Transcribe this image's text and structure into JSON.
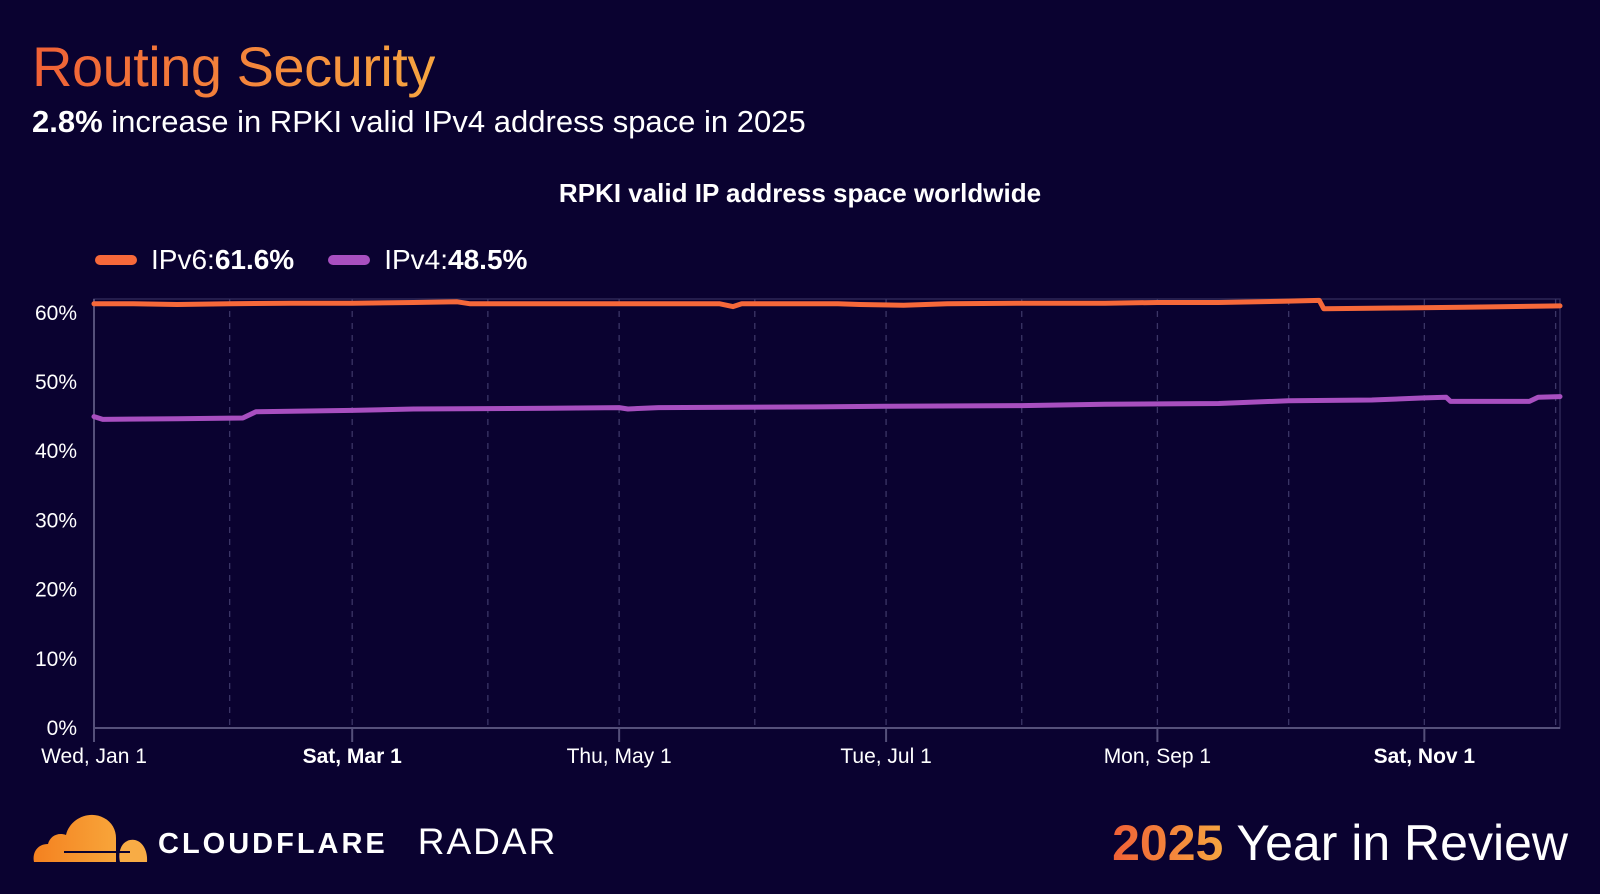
{
  "header": {
    "title": "Routing Security",
    "subtitle_bold": "2.8%",
    "subtitle_rest": " increase in RPKI valid IPv4 address space in 2025"
  },
  "footer": {
    "brand": "CLOUDFLARE",
    "product": "RADAR",
    "year": "2025",
    "tagline": " Year in Review"
  },
  "legend": [
    {
      "label": "IPv6: ",
      "value": "61.6%",
      "color": "#f6683a"
    },
    {
      "label": "IPv4: ",
      "value": "48.5%",
      "color": "#a84fc0"
    }
  ],
  "chart_data": {
    "type": "line",
    "title": "RPKI valid IP address space worldwide",
    "xlim": [
      "2025-01-01",
      "2025-12-02"
    ],
    "ylim": [
      0,
      62
    ],
    "grid": true,
    "legend_placement": "top-left",
    "y_ticks": [
      {
        "value": 0,
        "label": "0%"
      },
      {
        "value": 10,
        "label": "10%"
      },
      {
        "value": 20,
        "label": "20%"
      },
      {
        "value": 30,
        "label": "30%"
      },
      {
        "value": 40,
        "label": "40%"
      },
      {
        "value": 50,
        "label": "50%"
      },
      {
        "value": 60,
        "label": "60%"
      }
    ],
    "x_ticks": [
      {
        "date": "2025-01-01",
        "label": "Wed, Jan 1",
        "bold": false
      },
      {
        "date": "2025-03-01",
        "label": "Sat, Mar 1",
        "bold": true
      },
      {
        "date": "2025-05-01",
        "label": "Thu, May 1",
        "bold": false
      },
      {
        "date": "2025-07-01",
        "label": "Tue, Jul 1",
        "bold": false
      },
      {
        "date": "2025-09-01",
        "label": "Mon, Sep 1",
        "bold": false
      },
      {
        "date": "2025-11-01",
        "label": "Sat, Nov 1",
        "bold": true
      }
    ],
    "gridlines": [
      "2025-02-01",
      "2025-03-01",
      "2025-04-01",
      "2025-05-01",
      "2025-06-01",
      "2025-07-01",
      "2025-08-01",
      "2025-09-01",
      "2025-10-01",
      "2025-11-01",
      "2025-12-01"
    ],
    "series": [
      {
        "name": "IPv6",
        "color": "#f6683a",
        "points": [
          [
            "2025-01-01",
            61.3
          ],
          [
            "2025-01-10",
            61.3
          ],
          [
            "2025-01-20",
            61.2
          ],
          [
            "2025-02-01",
            61.3
          ],
          [
            "2025-02-15",
            61.4
          ],
          [
            "2025-03-01",
            61.4
          ],
          [
            "2025-03-15",
            61.5
          ],
          [
            "2025-03-25",
            61.6
          ],
          [
            "2025-03-28",
            61.3
          ],
          [
            "2025-04-10",
            61.3
          ],
          [
            "2025-04-25",
            61.3
          ],
          [
            "2025-05-10",
            61.3
          ],
          [
            "2025-05-24",
            61.3
          ],
          [
            "2025-05-27",
            60.9
          ],
          [
            "2025-05-29",
            61.3
          ],
          [
            "2025-06-20",
            61.3
          ],
          [
            "2025-06-25",
            61.2
          ],
          [
            "2025-07-05",
            61.1
          ],
          [
            "2025-07-15",
            61.3
          ],
          [
            "2025-08-01",
            61.4
          ],
          [
            "2025-08-20",
            61.4
          ],
          [
            "2025-09-01",
            61.5
          ],
          [
            "2025-09-15",
            61.5
          ],
          [
            "2025-10-01",
            61.7
          ],
          [
            "2025-10-08",
            61.8
          ],
          [
            "2025-10-09",
            60.6
          ],
          [
            "2025-10-25",
            60.7
          ],
          [
            "2025-11-10",
            60.8
          ],
          [
            "2025-12-02",
            61.0
          ]
        ]
      },
      {
        "name": "IPv4",
        "color": "#a84fc0",
        "points": [
          [
            "2025-01-01",
            45.0
          ],
          [
            "2025-01-03",
            44.6
          ],
          [
            "2025-01-20",
            44.7
          ],
          [
            "2025-02-04",
            44.8
          ],
          [
            "2025-02-07",
            45.7
          ],
          [
            "2025-03-01",
            45.9
          ],
          [
            "2025-03-15",
            46.1
          ],
          [
            "2025-04-15",
            46.2
          ],
          [
            "2025-05-01",
            46.3
          ],
          [
            "2025-05-03",
            46.1
          ],
          [
            "2025-05-10",
            46.3
          ],
          [
            "2025-06-15",
            46.4
          ],
          [
            "2025-07-01",
            46.5
          ],
          [
            "2025-08-01",
            46.6
          ],
          [
            "2025-08-20",
            46.8
          ],
          [
            "2025-09-15",
            46.9
          ],
          [
            "2025-10-01",
            47.3
          ],
          [
            "2025-10-20",
            47.4
          ],
          [
            "2025-11-01",
            47.7
          ],
          [
            "2025-11-06",
            47.8
          ],
          [
            "2025-11-07",
            47.2
          ],
          [
            "2025-11-25",
            47.2
          ],
          [
            "2025-11-27",
            47.8
          ],
          [
            "2025-12-02",
            47.9
          ]
        ]
      }
    ]
  }
}
